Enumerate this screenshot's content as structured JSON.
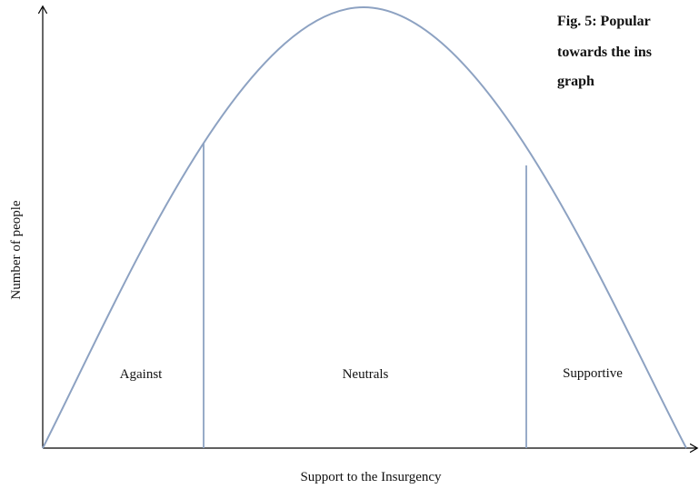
{
  "figure": {
    "caption_lines": [
      "Fig. 5: Popular",
      "towards the ins",
      "graph"
    ],
    "x_axis_label": "Support to the Insurgency",
    "y_axis_label": "Number of people",
    "regions": [
      {
        "label": "Against"
      },
      {
        "label": "Neutrals"
      },
      {
        "label": "Supportive"
      }
    ]
  }
}
